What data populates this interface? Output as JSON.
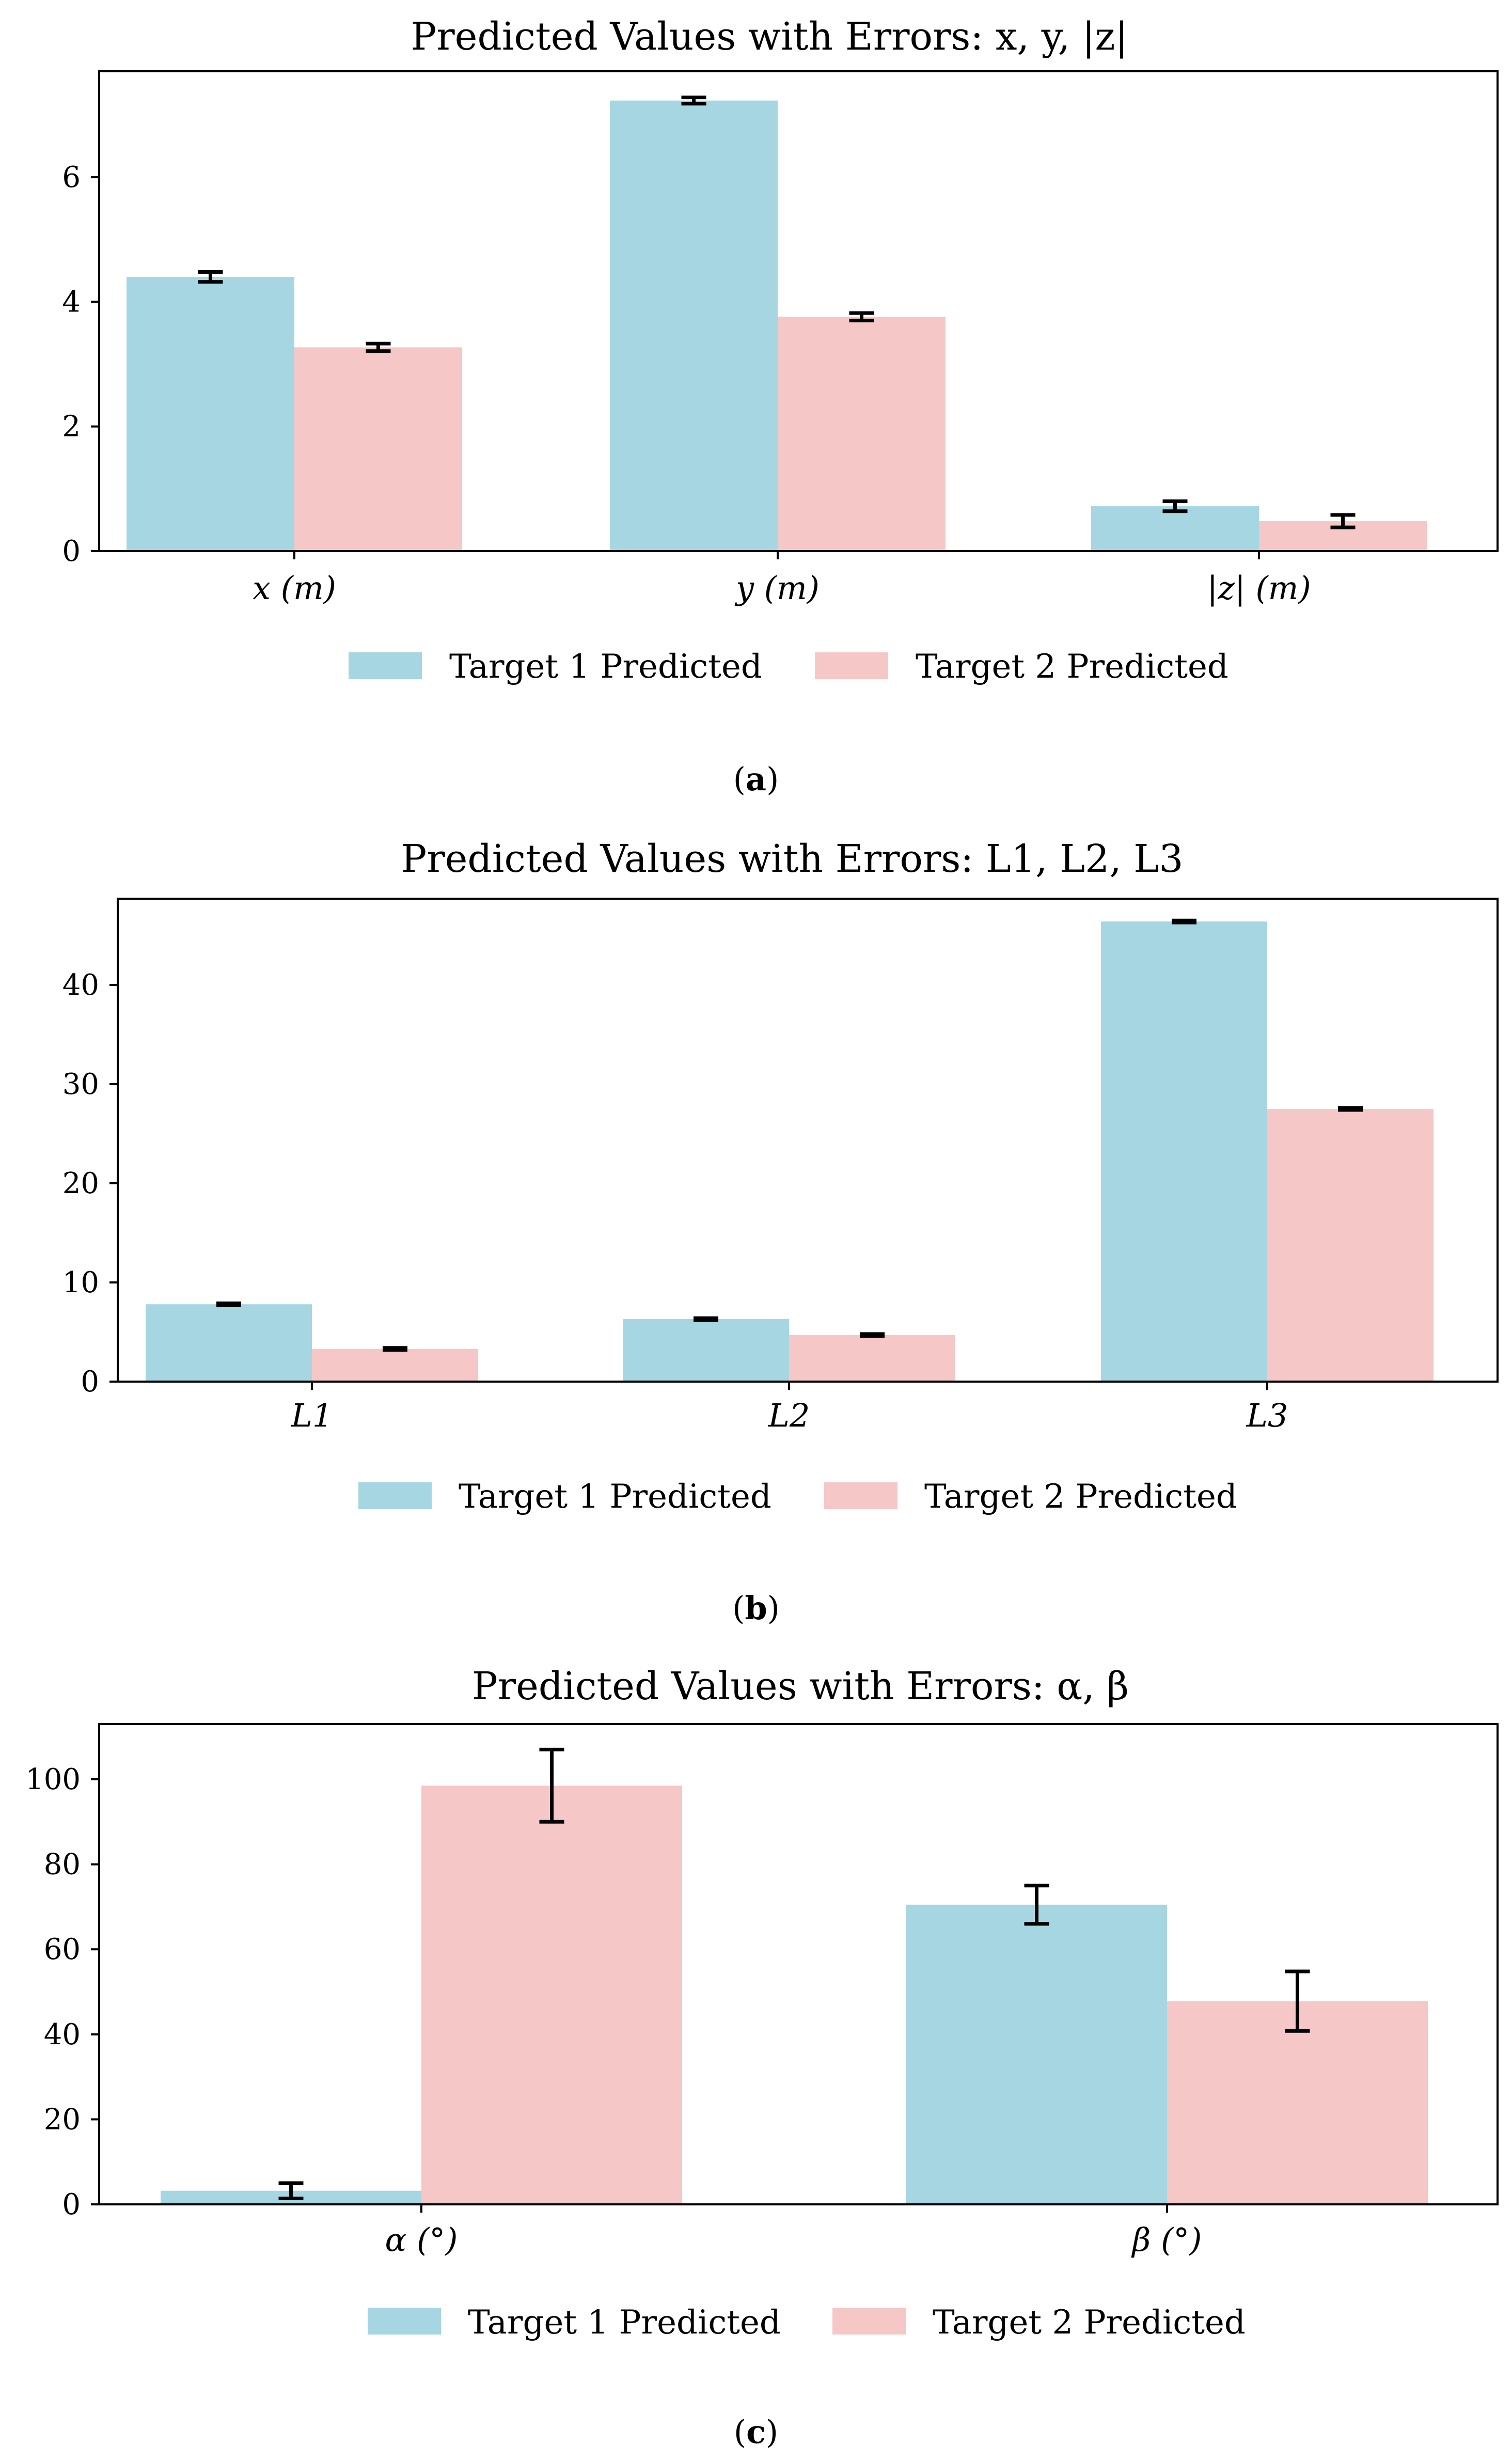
{
  "colors": {
    "series1": "#a5d6e2",
    "series2": "#f6c7c7",
    "axis": "#000000",
    "errorbar": "#000000"
  },
  "chart_data": [
    {
      "id": "a",
      "type": "bar",
      "title": "Predicted Values with Errors: x, y, |z|",
      "categories": [
        "x (m)",
        "y (m)",
        "|z| (m)"
      ],
      "series": [
        {
          "name": "Target 1 Predicted",
          "values": [
            4.4,
            7.23,
            0.72
          ],
          "errors": [
            0.08,
            0.05,
            0.08
          ]
        },
        {
          "name": "Target 2 Predicted",
          "values": [
            3.27,
            3.76,
            0.48
          ],
          "errors": [
            0.06,
            0.06,
            0.1
          ]
        }
      ],
      "ylim": [
        0,
        7.7
      ],
      "yticks": [
        0,
        2,
        4,
        6
      ],
      "xlabel": "",
      "ylabel": "",
      "legend": "bottom-center",
      "caption_label": "a"
    },
    {
      "id": "b",
      "type": "bar",
      "title": "Predicted Values with Errors: L1, L2, L3",
      "categories": [
        "L1",
        "L2",
        "L3"
      ],
      "series": [
        {
          "name": "Target 1 Predicted",
          "values": [
            7.8,
            6.3,
            46.4
          ],
          "errors": [
            0.1,
            0.1,
            0.1
          ]
        },
        {
          "name": "Target 2 Predicted",
          "values": [
            3.3,
            4.7,
            27.5
          ],
          "errors": [
            0.1,
            0.1,
            0.1
          ]
        }
      ],
      "ylim": [
        0,
        48.7
      ],
      "yticks": [
        0,
        10,
        20,
        30,
        40
      ],
      "xlabel": "",
      "ylabel": "",
      "legend": "bottom-center",
      "caption_label": "b"
    },
    {
      "id": "c",
      "type": "bar",
      "title": "Predicted Values with Errors: α, β",
      "categories": [
        "α (°)",
        "β (°)"
      ],
      "series": [
        {
          "name": "Target 1 Predicted",
          "values": [
            3.2,
            70.5
          ],
          "errors": [
            1.8,
            4.5
          ]
        },
        {
          "name": "Target 2 Predicted",
          "values": [
            98.5,
            47.8
          ],
          "errors": [
            8.5,
            7.0
          ]
        }
      ],
      "ylim": [
        0,
        113
      ],
      "yticks": [
        0,
        20,
        40,
        60,
        80,
        100
      ],
      "xlabel": "",
      "ylabel": "",
      "legend": "bottom-center",
      "caption_label": "c"
    }
  ]
}
